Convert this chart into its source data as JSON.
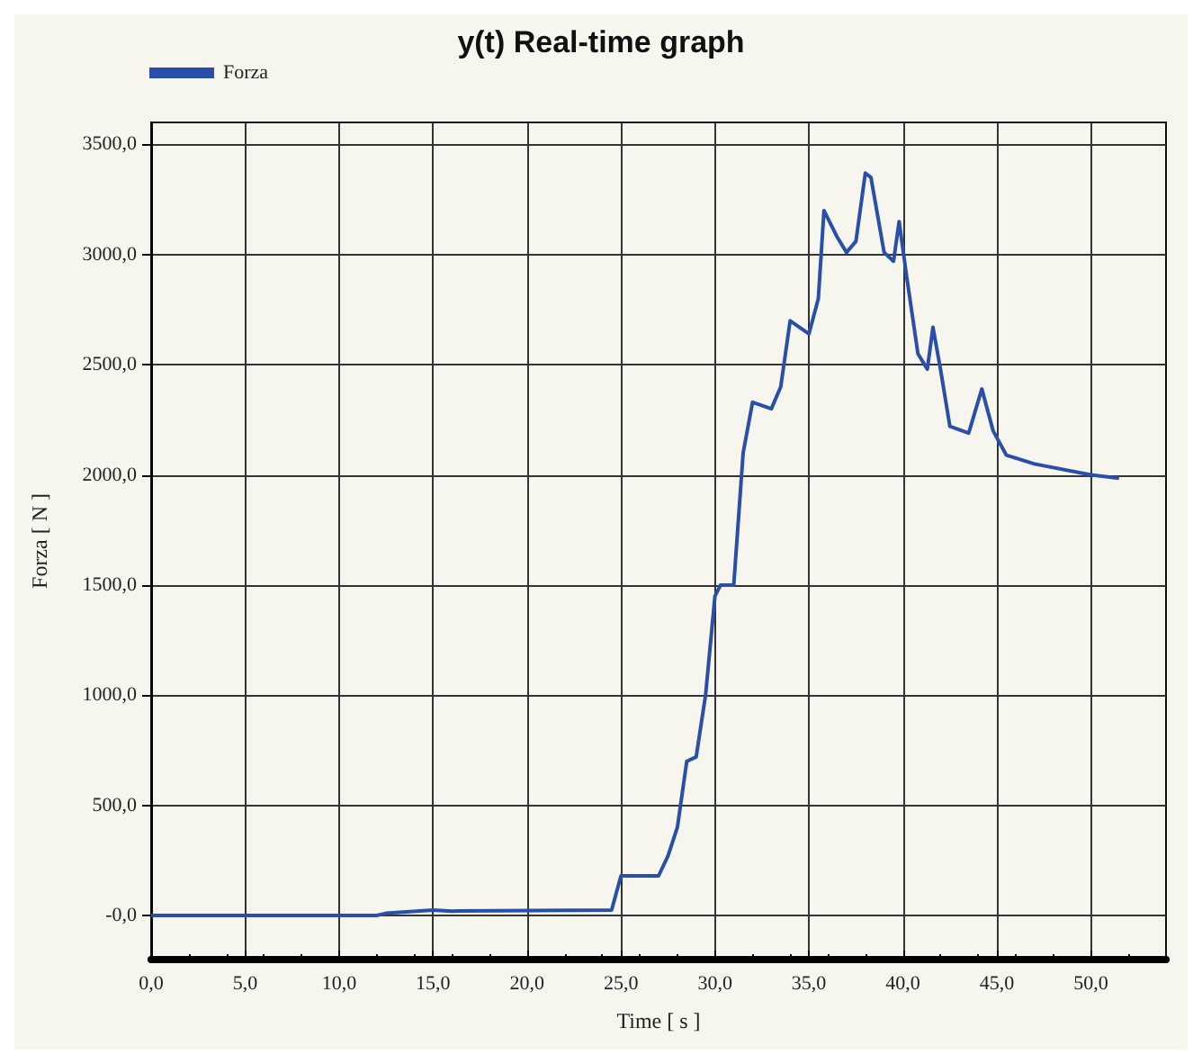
{
  "chart_data": {
    "type": "line",
    "title": "y(t) Real-time graph",
    "xlabel": "Time [ s ]",
    "ylabel": "Forza [ N ]",
    "xlim": [
      0,
      54
    ],
    "ylim": [
      -200,
      3600
    ],
    "xticks": [
      {
        "value": 0,
        "label": "0,0"
      },
      {
        "value": 5,
        "label": "5,0"
      },
      {
        "value": 10,
        "label": "10,0"
      },
      {
        "value": 15,
        "label": "15,0"
      },
      {
        "value": 20,
        "label": "20,0"
      },
      {
        "value": 25,
        "label": "25,0"
      },
      {
        "value": 30,
        "label": "30,0"
      },
      {
        "value": 35,
        "label": "35,0"
      },
      {
        "value": 40,
        "label": "40,0"
      },
      {
        "value": 45,
        "label": "45,0"
      },
      {
        "value": 50,
        "label": "50,0"
      }
    ],
    "yticks": [
      {
        "value": 0,
        "label": "-0,0"
      },
      {
        "value": 500,
        "label": "500,0"
      },
      {
        "value": 1000,
        "label": "1000,0"
      },
      {
        "value": 1500,
        "label": "1500,0"
      },
      {
        "value": 2000,
        "label": "2000,0"
      },
      {
        "value": 2500,
        "label": "2500,0"
      },
      {
        "value": 3000,
        "label": "3000,0"
      },
      {
        "value": 3500,
        "label": "3500,0"
      }
    ],
    "grid": true,
    "legend": "top left",
    "marker": "none",
    "line_style": "solid",
    "series": [
      {
        "name": "Forza",
        "color": "#2a4fa8",
        "x": [
          0,
          12,
          12.5,
          15,
          16,
          24.5,
          25,
          27,
          27.5,
          28,
          28.5,
          29,
          29.5,
          30,
          30.3,
          31,
          31.5,
          32,
          33,
          33.5,
          34,
          35,
          35.5,
          35.8,
          36.5,
          37,
          37.5,
          38,
          38.3,
          39,
          39.5,
          39.8,
          40.2,
          40.8,
          41.3,
          41.6,
          42,
          42.5,
          43.5,
          44.2,
          44.8,
          45.5,
          47,
          50,
          51.5
        ],
        "values": [
          0,
          0,
          10,
          25,
          20,
          25,
          180,
          180,
          270,
          400,
          700,
          720,
          1000,
          1450,
          1500,
          1500,
          2100,
          2330,
          2300,
          2400,
          2700,
          2640,
          2800,
          3200,
          3080,
          3010,
          3060,
          3370,
          3350,
          3010,
          2970,
          3150,
          2900,
          2550,
          2480,
          2670,
          2480,
          2220,
          2190,
          2390,
          2200,
          2090,
          2050,
          2000,
          1985
        ]
      }
    ]
  }
}
